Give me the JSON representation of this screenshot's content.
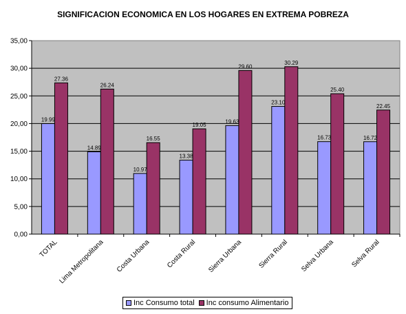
{
  "chart_data": {
    "type": "bar",
    "title": "SIGNIFICACION ECONOMICA EN LOS HOGARES EN EXTREMA POBREZA",
    "categories": [
      "TOTAL",
      "Lima Metropolitana",
      "Costa Urbana",
      "Costa Rural",
      "Sierra Urbana",
      "Sierra Rural",
      "Selva Urbana",
      "Selva Rural"
    ],
    "series": [
      {
        "name": "Inc Consumo total",
        "color": "#9999ff",
        "values": [
          19.99,
          14.89,
          10.97,
          13.38,
          19.63,
          23.1,
          16.73,
          16.72
        ],
        "labels": [
          "19.99",
          "14.89",
          "10.97",
          "13.38",
          "19.63",
          "23.10",
          "16.73",
          "16.72"
        ]
      },
      {
        "name": "Inc consumo Alimentario",
        "color": "#993366",
        "values": [
          27.36,
          26.24,
          16.55,
          19.05,
          29.6,
          30.29,
          25.4,
          22.45
        ],
        "labels": [
          "27.36",
          "26.24",
          "16.55",
          "19.05",
          "29.60",
          "30.29",
          "25.40",
          "22.45"
        ]
      }
    ],
    "ylim": [
      0,
      35
    ],
    "yticks": [
      "0,00",
      "5,00",
      "10,00",
      "15,00",
      "20,00",
      "25,00",
      "30,00",
      "35,00"
    ],
    "plot_background": "#c0c0c0",
    "grid": true,
    "legend": "bottom"
  }
}
